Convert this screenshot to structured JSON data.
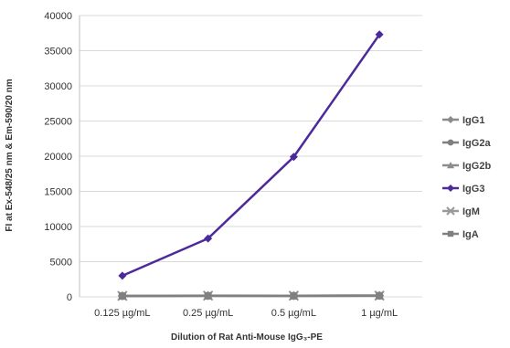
{
  "chart_data": {
    "type": "line",
    "title": "",
    "xlabel": "Dilution of Rat Anti-Mouse IgG₃-PE",
    "ylabel": "FI at Ex-548/25 nm & Em-590/20 nm",
    "categories": [
      "0.125 µg/mL",
      "0.25 µg/mL",
      "0.5 µg/mL",
      "1 µg/mL"
    ],
    "ylim": [
      0,
      40000
    ],
    "yticks": [
      0,
      5000,
      10000,
      15000,
      20000,
      25000,
      30000,
      35000,
      40000
    ],
    "grid": true,
    "legend_position": "right",
    "series": [
      {
        "name": "IgG1",
        "values": [
          150,
          180,
          170,
          200
        ],
        "color": "#8a8a8a",
        "marker": "diamond"
      },
      {
        "name": "IgG2a",
        "values": [
          120,
          150,
          140,
          160
        ],
        "color": "#7f7f7f",
        "marker": "circle"
      },
      {
        "name": "IgG2b",
        "values": [
          130,
          160,
          150,
          170
        ],
        "color": "#8c8c8c",
        "marker": "triangle"
      },
      {
        "name": "IgG3",
        "values": [
          3000,
          8300,
          19900,
          37300
        ],
        "color": "#4b2a9a",
        "marker": "diamond"
      },
      {
        "name": "IgM",
        "values": [
          140,
          170,
          160,
          180
        ],
        "color": "#999999",
        "marker": "x"
      },
      {
        "name": "IgA",
        "values": [
          110,
          140,
          130,
          150
        ],
        "color": "#808080",
        "marker": "square"
      }
    ]
  }
}
